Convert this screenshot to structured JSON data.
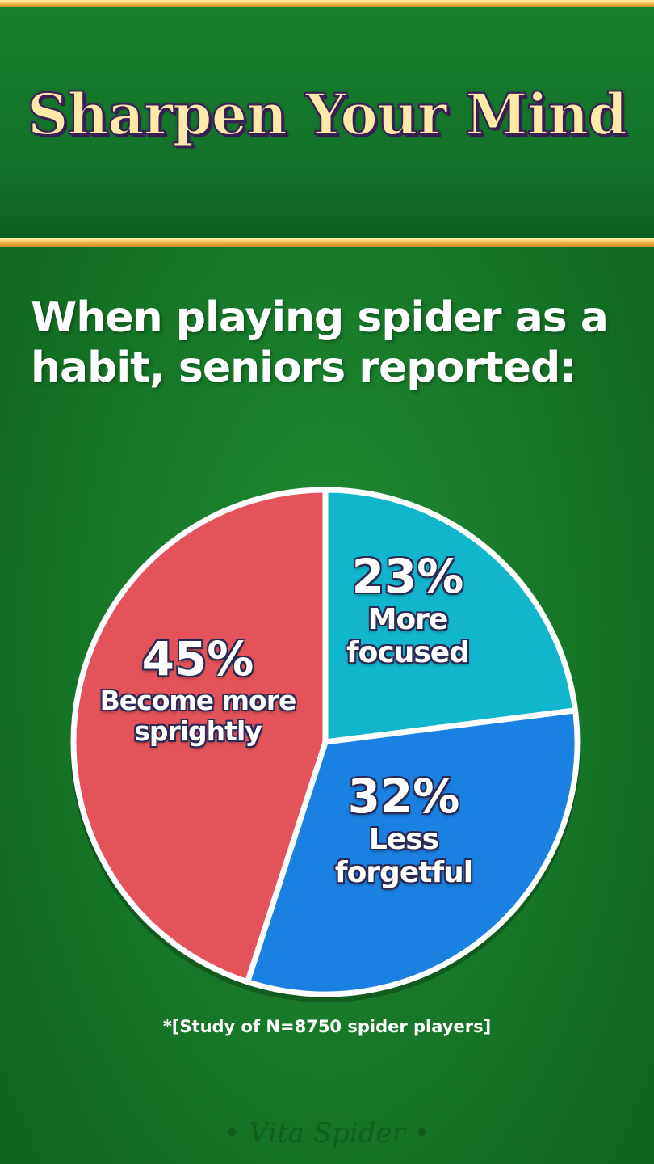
{
  "header": {
    "title": "Sharpen Your Mind"
  },
  "chart_data": {
    "type": "pie",
    "title": "When playing spider as a habit, seniors reported:",
    "slices": [
      {
        "label": "More focused",
        "value": 23,
        "display": "23%",
        "color": "#12b6cc"
      },
      {
        "label": "Less forgetful",
        "value": 32,
        "display": "32%",
        "color": "#1a80e2"
      },
      {
        "label": "Become more sprightly",
        "value": 45,
        "display": "45%",
        "color": "#e4535a"
      }
    ],
    "note": "*[Study of N=8750 spider players]"
  },
  "watermark": "• Vita Spider •"
}
